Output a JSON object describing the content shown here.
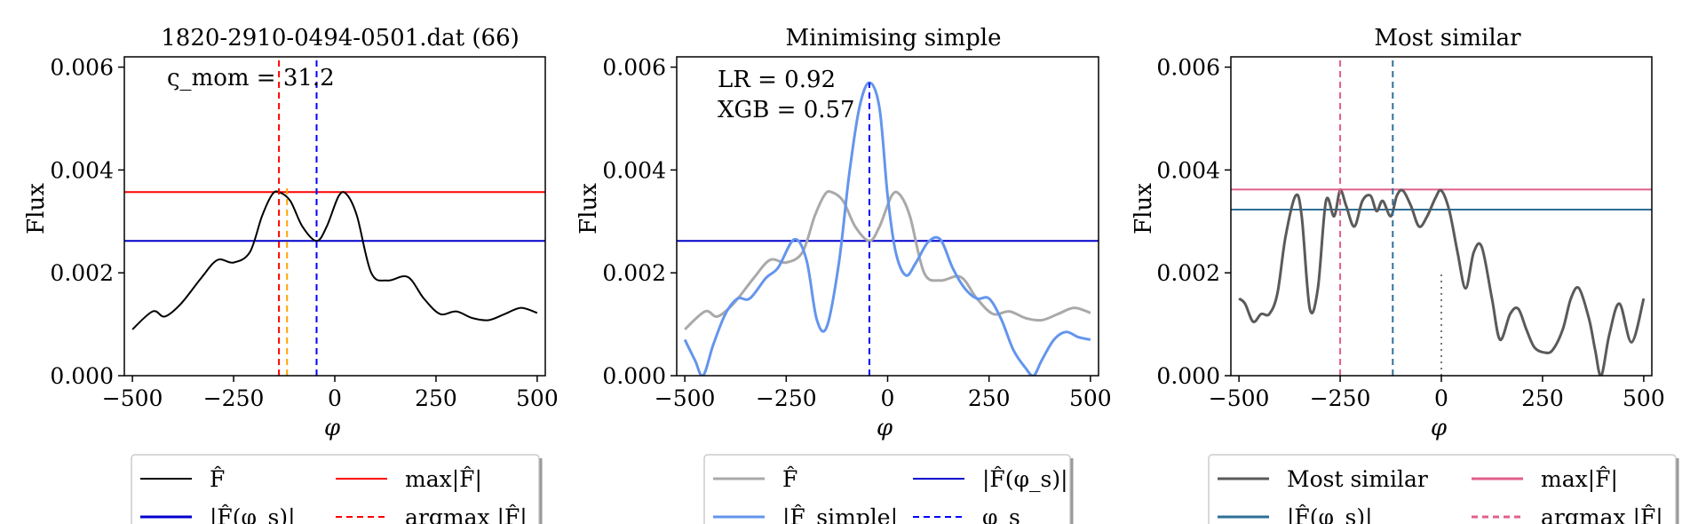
{
  "figure": {
    "panels": [
      {
        "title": "1820-2910-0494-0501.dat (66)",
        "ylabel": "Flux",
        "xlabel": "φ",
        "annotations": [
          "ς_mom = 31.2"
        ],
        "legend_entries": [
          "F̂",
          "max|F̂|",
          "|F̂(φ_s)|",
          "argmax |F̂|"
        ]
      },
      {
        "title": "Minimising simple",
        "ylabel": "Flux",
        "xlabel": "φ",
        "annotations": [
          "LR = 0.92",
          "XGB = 0.57"
        ],
        "legend_entries": [
          "F̂",
          "|F̂(φ_s)|",
          "|F̂_simple|",
          "φ_s"
        ]
      },
      {
        "title": "Most similar",
        "ylabel": "Flux",
        "xlabel": "φ",
        "annotations": [],
        "legend_entries": [
          "Most similar",
          "max|F̂|",
          "|F̂(φ_s)|",
          "argmax |F̂|"
        ]
      }
    ]
  },
  "chart_data": [
    {
      "type": "line",
      "title": "1820-2910-0494-0501.dat (66)",
      "xlabel": "φ",
      "ylabel": "Flux",
      "xlim": [
        -520,
        520
      ],
      "ylim": [
        0,
        0.0062
      ],
      "xticks": [
        -500,
        -250,
        0,
        250,
        500
      ],
      "xtick_labels": [
        "−500",
        "−250",
        "0",
        "250",
        "500"
      ],
      "yticks": [
        0,
        0.002,
        0.004,
        0.006
      ],
      "ytick_labels": [
        "0.000",
        "0.002",
        "0.004",
        "0.006"
      ],
      "grid": false,
      "legend_position": "below",
      "series": [
        {
          "name": "F̂",
          "color": "#000000",
          "style": "solid",
          "x": [
            -500,
            -450,
            -420,
            -380,
            -330,
            -290,
            -250,
            -210,
            -180,
            -155,
            -138,
            -110,
            -80,
            -45,
            -20,
            10,
            30,
            55,
            90,
            130,
            180,
            220,
            260,
            300,
            340,
            380,
            420,
            460,
            500
          ],
          "y": [
            0.0009,
            0.00125,
            0.00115,
            0.0014,
            0.0019,
            0.00225,
            0.0022,
            0.0024,
            0.0031,
            0.00352,
            0.00357,
            0.0034,
            0.0029,
            0.00262,
            0.0029,
            0.0035,
            0.00352,
            0.0031,
            0.002,
            0.00185,
            0.00192,
            0.0015,
            0.0012,
            0.00125,
            0.00112,
            0.00108,
            0.0012,
            0.00132,
            0.00122
          ]
        }
      ],
      "hlines": [
        {
          "name": "max|F̂|",
          "y": 0.00357,
          "color": "#ff0000",
          "style": "solid"
        },
        {
          "name": "|F̂(φ_s)|",
          "y": 0.00262,
          "color": "#0000cc",
          "style": "solid"
        }
      ],
      "vlines": [
        {
          "name": "argmax |F̂|",
          "x": -138,
          "color": "#ff0000",
          "style": "dashed",
          "ymin": 0,
          "ymax": 0.0062
        },
        {
          "name": "orange marker",
          "x": -118,
          "color": "#ffa500",
          "style": "dashed",
          "ymin": 0,
          "ymax": 0.0037
        },
        {
          "name": "φ_s",
          "x": -45,
          "color": "#0000ff",
          "style": "dashed",
          "ymin": 0,
          "ymax": 0.0062
        }
      ]
    },
    {
      "type": "line",
      "title": "Minimising simple",
      "xlabel": "φ",
      "ylabel": "Flux",
      "xlim": [
        -520,
        520
      ],
      "ylim": [
        0,
        0.0062
      ],
      "xticks": [
        -500,
        -250,
        0,
        250,
        500
      ],
      "xtick_labels": [
        "−500",
        "−250",
        "0",
        "250",
        "500"
      ],
      "yticks": [
        0,
        0.002,
        0.004,
        0.006
      ],
      "ytick_labels": [
        "0.000",
        "0.002",
        "0.004",
        "0.006"
      ],
      "grid": false,
      "legend_position": "below",
      "series": [
        {
          "name": "F̂",
          "color": "#a9a9a9",
          "style": "solid",
          "x": [
            -500,
            -450,
            -420,
            -380,
            -330,
            -290,
            -250,
            -210,
            -180,
            -155,
            -138,
            -110,
            -80,
            -45,
            -20,
            10,
            30,
            55,
            90,
            130,
            180,
            220,
            260,
            300,
            340,
            380,
            420,
            460,
            500
          ],
          "y": [
            0.0009,
            0.00125,
            0.00115,
            0.0014,
            0.0019,
            0.00225,
            0.0022,
            0.0024,
            0.0031,
            0.00352,
            0.00357,
            0.0034,
            0.0029,
            0.00262,
            0.0029,
            0.0035,
            0.00352,
            0.0031,
            0.002,
            0.00185,
            0.00192,
            0.0015,
            0.0012,
            0.00125,
            0.00112,
            0.00108,
            0.0012,
            0.00132,
            0.00122
          ]
        },
        {
          "name": "|F̂_simple|",
          "color": "#6495ed",
          "style": "solid",
          "x": [
            -500,
            -475,
            -455,
            -430,
            -400,
            -370,
            -340,
            -300,
            -270,
            -230,
            -200,
            -175,
            -150,
            -120,
            -95,
            -70,
            -45,
            -20,
            0,
            20,
            45,
            70,
            100,
            130,
            160,
            190,
            220,
            250,
            280,
            310,
            340,
            360,
            380,
            410,
            440,
            470,
            500
          ],
          "y": [
            0.0007,
            0.0003,
            0.0,
            0.0006,
            0.0012,
            0.0015,
            0.0015,
            0.0019,
            0.0021,
            0.00265,
            0.00225,
            0.0011,
            0.00095,
            0.0022,
            0.0039,
            0.0052,
            0.0057,
            0.0052,
            0.0035,
            0.0024,
            0.00195,
            0.0022,
            0.0026,
            0.00265,
            0.0021,
            0.0017,
            0.0015,
            0.0015,
            0.0011,
            0.0005,
            0.00015,
            0.0,
            0.0003,
            0.0007,
            0.00085,
            0.00075,
            0.0007
          ]
        }
      ],
      "hlines": [
        {
          "name": "|F̂(φ_s)|",
          "y": 0.00262,
          "color": "#0000cc",
          "style": "solid"
        }
      ],
      "vlines": [
        {
          "name": "φ_s",
          "x": -45,
          "color": "#0000ff",
          "style": "dashed",
          "ymin": 0,
          "ymax": 0.0057
        }
      ]
    },
    {
      "type": "line",
      "title": "Most similar",
      "xlabel": "φ",
      "ylabel": "Flux",
      "xlim": [
        -520,
        520
      ],
      "ylim": [
        0,
        0.0062
      ],
      "xticks": [
        -500,
        -250,
        0,
        250,
        500
      ],
      "xtick_labels": [
        "−500",
        "−250",
        "0",
        "250",
        "500"
      ],
      "yticks": [
        0,
        0.002,
        0.004,
        0.006
      ],
      "ytick_labels": [
        "0.000",
        "0.002",
        "0.004",
        "0.006"
      ],
      "grid": false,
      "legend_position": "below",
      "series": [
        {
          "name": "Most similar",
          "color": "#5a5a5a",
          "style": "solid",
          "x": [
            -500,
            -485,
            -465,
            -445,
            -425,
            -405,
            -385,
            -360,
            -345,
            -325,
            -305,
            -285,
            -265,
            -250,
            -235,
            -215,
            -195,
            -175,
            -160,
            -145,
            -125,
            -110,
            -95,
            -75,
            -55,
            -35,
            -15,
            0,
            20,
            40,
            60,
            80,
            100,
            125,
            145,
            170,
            190,
            210,
            230,
            255,
            275,
            300,
            320,
            340,
            365,
            380,
            395,
            415,
            440,
            470,
            500
          ],
          "y": [
            0.0015,
            0.0014,
            0.00105,
            0.0012,
            0.0012,
            0.0016,
            0.0027,
            0.0035,
            0.0031,
            0.0013,
            0.0017,
            0.0034,
            0.0031,
            0.0036,
            0.0033,
            0.0029,
            0.0034,
            0.0035,
            0.0032,
            0.0034,
            0.0031,
            0.0035,
            0.0036,
            0.0033,
            0.0029,
            0.0031,
            0.00345,
            0.0036,
            0.0032,
            0.0024,
            0.0017,
            0.0024,
            0.0025,
            0.0015,
            0.0007,
            0.0012,
            0.0013,
            0.0009,
            0.00055,
            0.00045,
            0.0005,
            0.0009,
            0.0015,
            0.0017,
            0.0011,
            0.0005,
            0.0,
            0.0008,
            0.0014,
            0.00065,
            0.0015
          ]
        }
      ],
      "hlines": [
        {
          "name": "max|F̂|",
          "y": 0.00362,
          "color": "#e0608a",
          "style": "solid"
        },
        {
          "name": "|F̂(φ_s)|",
          "y": 0.00323,
          "color": "#2e6f96",
          "style": "solid"
        }
      ],
      "vlines": [
        {
          "name": "argmax |F̂|",
          "x": -250,
          "color": "#e0608a",
          "style": "dashed",
          "ymin": 0,
          "ymax": 0.0062
        },
        {
          "name": "φ_s",
          "x": -120,
          "color": "#2e6f9e",
          "style": "dashed",
          "ymin": 0,
          "ymax": 0.0062
        },
        {
          "name": "zero marker",
          "x": 0,
          "color": "#777777",
          "style": "dotted",
          "ymin": 0,
          "ymax": 0.002
        }
      ]
    }
  ]
}
